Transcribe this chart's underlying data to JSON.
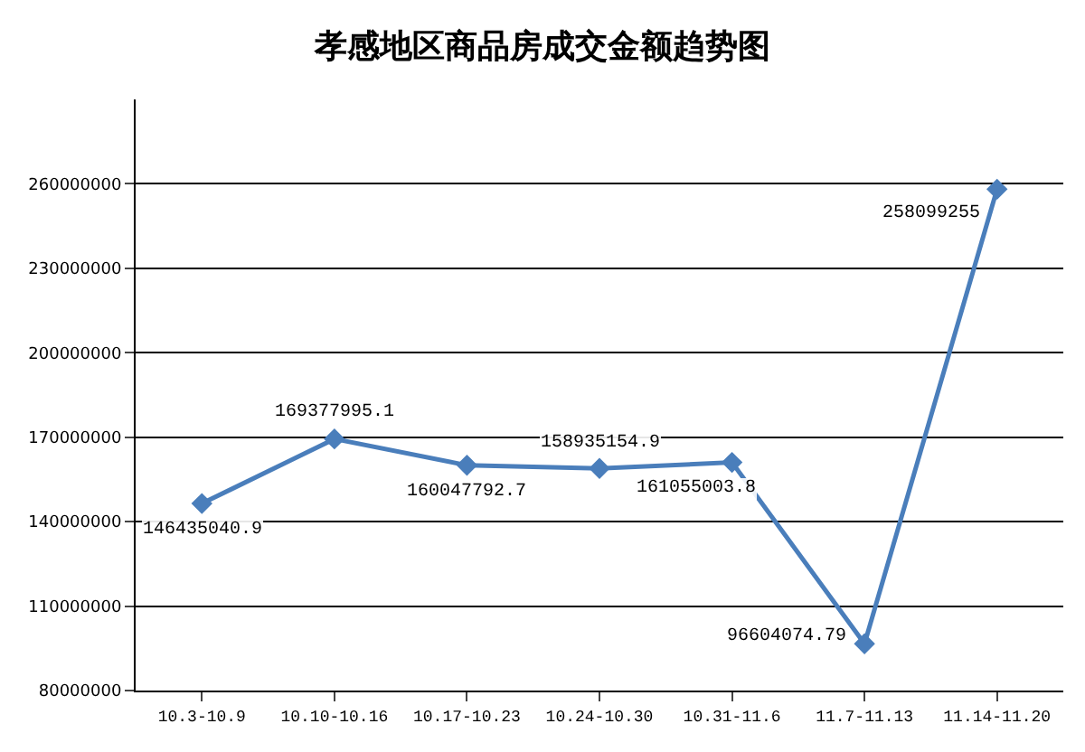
{
  "chart_data": {
    "type": "line",
    "title": "孝感地区商品房成交金额趋势图",
    "categories": [
      "10.3-10.9",
      "10.10-10.16",
      "10.17-10.23",
      "10.24-10.30",
      "10.31-11.6",
      "11.7-11.13",
      "11.14-11.20"
    ],
    "series": [
      {
        "color": "#4a7ebb",
        "values": [
          146435040.9,
          169377995.1,
          160047792.7,
          158935154.9,
          161055003.8,
          96604074.79,
          258099255
        ],
        "value_labels": [
          "146435040.9",
          "169377995.1",
          "160047792.7",
          "158935154.9",
          "161055003.8",
          "96604074.79",
          "258099255"
        ]
      }
    ],
    "ylim": [
      80000000,
      290000000
    ],
    "yticks": [
      80000000,
      110000000,
      140000000,
      170000000,
      200000000,
      230000000,
      260000000
    ],
    "grid": "y",
    "legend": false,
    "marker": "diamond",
    "line_style": "solid"
  }
}
